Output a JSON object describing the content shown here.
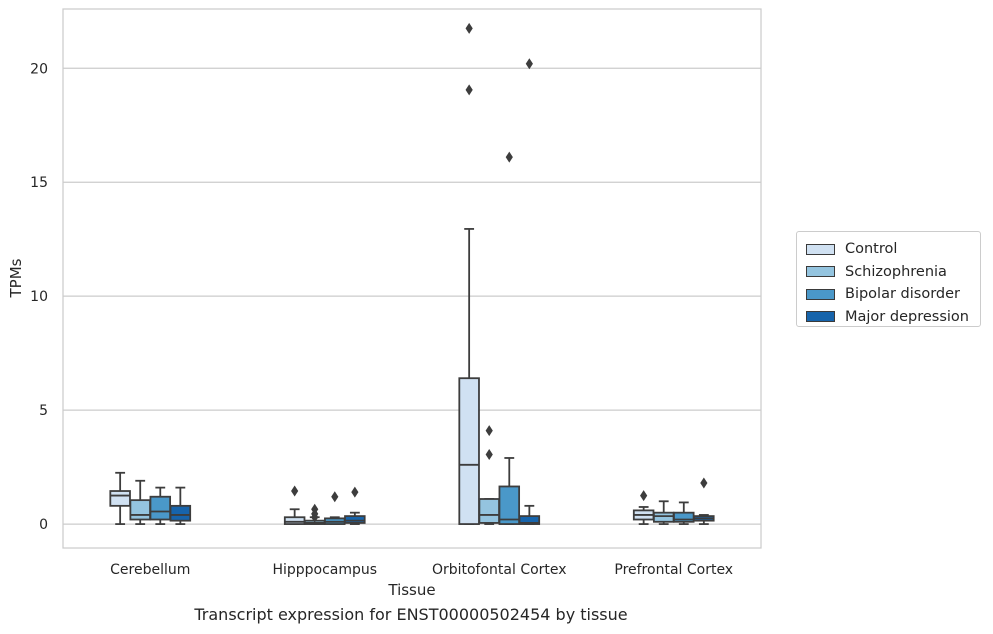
{
  "caption": "Transcript expression for ENST00000502454 by tissue",
  "chart_data": {
    "type": "box",
    "title": "",
    "xlabel": "Tissue",
    "ylabel": "TPMs",
    "ylim": [
      -1.05,
      22.6
    ],
    "yticks": [
      0,
      5,
      10,
      15,
      20
    ],
    "grid": "horizontal",
    "legend_position": "right",
    "categories": [
      "Cerebellum",
      "Hipppocampus",
      "Orbitofontal Cortex",
      "Prefrontal Cortex"
    ],
    "series": [
      {
        "name": "Control",
        "color": "#d0e1f2",
        "boxes": [
          {
            "whislo": 0.0,
            "q1": 0.8,
            "med": 1.25,
            "q3": 1.45,
            "whishi": 2.25,
            "fliers": []
          },
          {
            "whislo": 0.0,
            "q1": 0.0,
            "med": 0.1,
            "q3": 0.3,
            "whishi": 0.65,
            "fliers": [
              1.45
            ]
          },
          {
            "whislo": 0.0,
            "q1": 0.0,
            "med": 2.6,
            "q3": 6.4,
            "whishi": 12.95,
            "fliers": [
              21.75,
              19.05
            ]
          },
          {
            "whislo": 0.0,
            "q1": 0.2,
            "med": 0.4,
            "q3": 0.6,
            "whishi": 0.75,
            "fliers": [
              1.25
            ]
          }
        ]
      },
      {
        "name": "Schizophrenia",
        "color": "#94c4df",
        "boxes": [
          {
            "whislo": 0.0,
            "q1": 0.2,
            "med": 0.4,
            "q3": 1.05,
            "whishi": 1.9,
            "fliers": []
          },
          {
            "whislo": 0.0,
            "q1": 0.0,
            "med": 0.05,
            "q3": 0.15,
            "whishi": 0.3,
            "fliers": [
              0.65,
              0.45,
              0.3
            ]
          },
          {
            "whislo": 0.0,
            "q1": 0.05,
            "med": 0.4,
            "q3": 1.1,
            "whishi": 1.1,
            "fliers": [
              4.1,
              3.05
            ]
          },
          {
            "whislo": 0.0,
            "q1": 0.1,
            "med": 0.35,
            "q3": 0.5,
            "whishi": 1.0,
            "fliers": []
          }
        ]
      },
      {
        "name": "Bipolar disorder",
        "color": "#4a98c9",
        "boxes": [
          {
            "whislo": 0.0,
            "q1": 0.2,
            "med": 0.55,
            "q3": 1.2,
            "whishi": 1.6,
            "fliers": []
          },
          {
            "whislo": 0.0,
            "q1": 0.0,
            "med": 0.1,
            "q3": 0.25,
            "whishi": 0.3,
            "fliers": [
              1.2
            ]
          },
          {
            "whislo": 0.0,
            "q1": 0.0,
            "med": 0.2,
            "q3": 1.65,
            "whishi": 2.9,
            "fliers": [
              16.1
            ]
          },
          {
            "whislo": 0.0,
            "q1": 0.1,
            "med": 0.2,
            "q3": 0.5,
            "whishi": 0.95,
            "fliers": []
          }
        ]
      },
      {
        "name": "Major depression",
        "color": "#1764ab",
        "boxes": [
          {
            "whislo": 0.0,
            "q1": 0.15,
            "med": 0.4,
            "q3": 0.8,
            "whishi": 1.6,
            "fliers": []
          },
          {
            "whislo": 0.0,
            "q1": 0.05,
            "med": 0.15,
            "q3": 0.35,
            "whishi": 0.5,
            "fliers": [
              1.4
            ]
          },
          {
            "whislo": 0.0,
            "q1": 0.0,
            "med": 0.05,
            "q3": 0.35,
            "whishi": 0.8,
            "fliers": [
              20.2
            ]
          },
          {
            "whislo": 0.0,
            "q1": 0.15,
            "med": 0.25,
            "q3": 0.35,
            "whishi": 0.4,
            "fliers": [
              1.8
            ]
          }
        ]
      }
    ]
  }
}
